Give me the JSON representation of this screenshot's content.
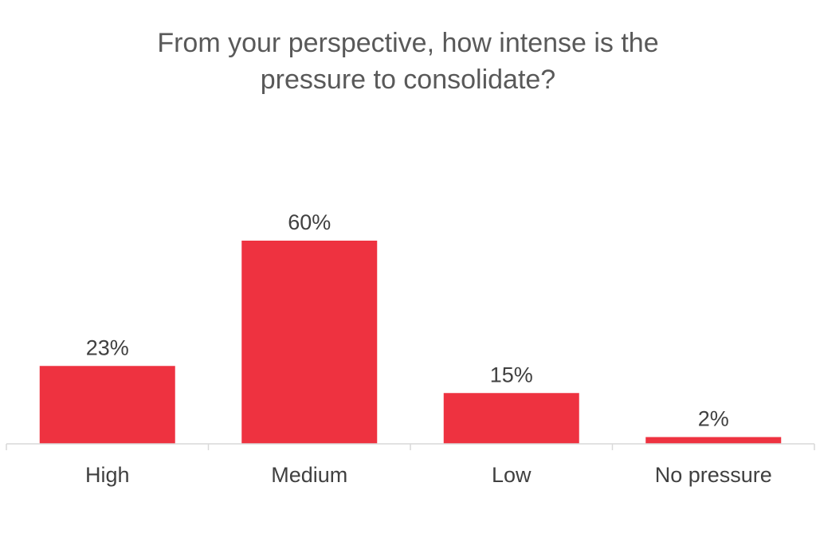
{
  "chart_data": {
    "type": "bar",
    "title_lines": [
      "From your perspective, how intense is the",
      "pressure to consolidate?"
    ],
    "categories": [
      "High",
      "Medium",
      "Low",
      "No pressure"
    ],
    "values": [
      23,
      60,
      15,
      2
    ],
    "data_labels": [
      "23%",
      "60%",
      "15%",
      "2%"
    ],
    "unit": "%",
    "ylim": [
      0,
      100
    ],
    "grid": false,
    "legend": "none",
    "colors": {
      "bar": "#ee3240",
      "axis": "#d9d9d9",
      "label_text": "#404040",
      "title_text": "#595959"
    }
  }
}
